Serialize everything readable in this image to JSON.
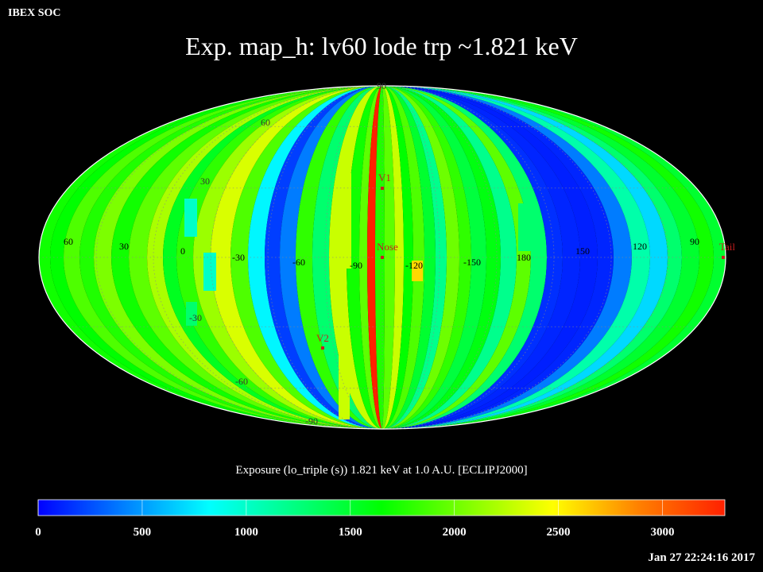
{
  "header": {
    "org": "IBEX SOC",
    "title": "Exp.   map_h: lv60 lode trp ~1.821 keV"
  },
  "map": {
    "projection": "Mollweide ecliptic (ECLIPJ2000)",
    "grid": true,
    "longitude_labels": [
      "60",
      "30",
      "0",
      "-30",
      "-60",
      "-90",
      "-120",
      "-150",
      "180",
      "150",
      "120",
      "90"
    ],
    "latitude_labels": [
      "90",
      "60",
      "30",
      "-30",
      "-60",
      "-90"
    ],
    "markers": [
      {
        "label": "V1",
        "color": "#c81e1e"
      },
      {
        "label": "Nose",
        "color": "#c81e1e"
      },
      {
        "label": "V2",
        "color": "#c81e1e"
      },
      {
        "label": "Tail",
        "color": "#c81e1e"
      }
    ],
    "value_range": [
      0,
      3300
    ]
  },
  "colorbar": {
    "title": "Exposure (lo_triple (s))  1.821 keV at 1.0 A.U. [ECLIPJ2000]",
    "min": 0,
    "max": 3300,
    "ticks": [
      "0",
      "500",
      "1000",
      "1500",
      "2000",
      "2500",
      "3000"
    ],
    "colors": [
      "#0000ff",
      "#0080ff",
      "#00ffff",
      "#00ff80",
      "#00ff00",
      "#80ff00",
      "#ffff00",
      "#ff8000",
      "#ff2000"
    ]
  },
  "footer": {
    "timestamp": "Jan 27 22:24:16 2017"
  }
}
